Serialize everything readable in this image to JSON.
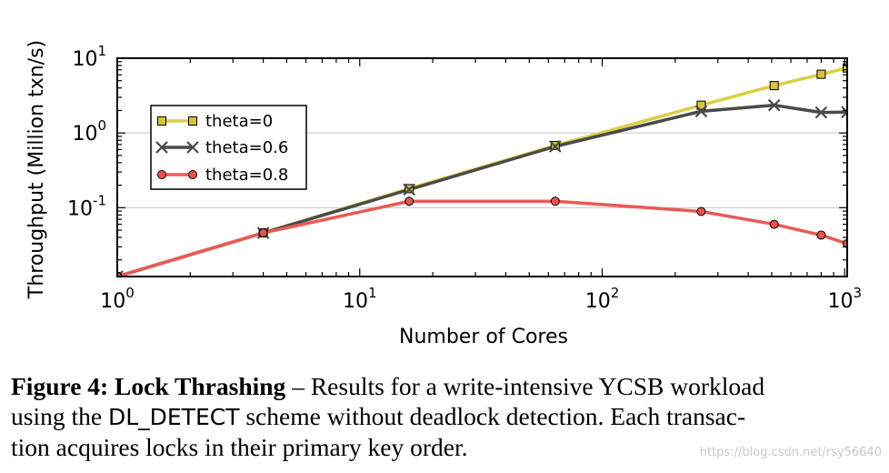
{
  "chart_data": {
    "type": "line",
    "x_scale": "log",
    "y_scale": "log",
    "xlabel": "Number of Cores",
    "ylabel": "Throughput (Million txn/s)",
    "xlim": [
      1,
      1024
    ],
    "ylim": [
      0.012,
      10
    ],
    "x_ticks": [
      {
        "value": 1,
        "base": "10",
        "exp": "0"
      },
      {
        "value": 10,
        "base": "10",
        "exp": "1"
      },
      {
        "value": 100,
        "base": "10",
        "exp": "2"
      },
      {
        "value": 1000,
        "base": "10",
        "exp": "3"
      }
    ],
    "y_ticks": [
      {
        "value": 0.1,
        "base": "10",
        "exp": "-1"
      },
      {
        "value": 1,
        "base": "10",
        "exp": "0"
      },
      {
        "value": 10,
        "base": "10",
        "exp": "1"
      }
    ],
    "grid": "horizontal",
    "legend_position": "upper-left",
    "series": [
      {
        "name": "theta=0",
        "color": "#dccf45",
        "marker": "square",
        "marker_color": "#d6c53a",
        "x": [
          1,
          4,
          16,
          64,
          256,
          512,
          800,
          1024
        ],
        "y": [
          0.012,
          0.046,
          0.18,
          0.68,
          2.35,
          4.3,
          6.1,
          7.4
        ]
      },
      {
        "name": "theta=0.6",
        "color": "#4a4a4a",
        "marker": "x",
        "marker_color": "#4a4a4a",
        "x": [
          1,
          4,
          16,
          64,
          256,
          512,
          800,
          1024
        ],
        "y": [
          0.012,
          0.046,
          0.175,
          0.66,
          1.95,
          2.35,
          1.88,
          1.9
        ]
      },
      {
        "name": "theta=0.8",
        "color": "#ea5a55",
        "marker": "circle",
        "marker_color": "#e85450",
        "x": [
          1,
          4,
          16,
          64,
          256,
          512,
          800,
          1024
        ],
        "y": [
          0.012,
          0.046,
          0.122,
          0.122,
          0.089,
          0.06,
          0.043,
          0.033
        ]
      }
    ]
  },
  "caption": {
    "label": "Figure 4: Lock Thrashing",
    "line1_rest": " – Results for a write-intensive YCSB workload",
    "line2_a": "using the ",
    "line2_mono": "DL_DETECT",
    "line2_b": " scheme without deadlock detection. Each transac-",
    "line3": "tion acquires locks in their primary key order."
  },
  "watermark": "https://blog.csdn.net/rsy56640"
}
